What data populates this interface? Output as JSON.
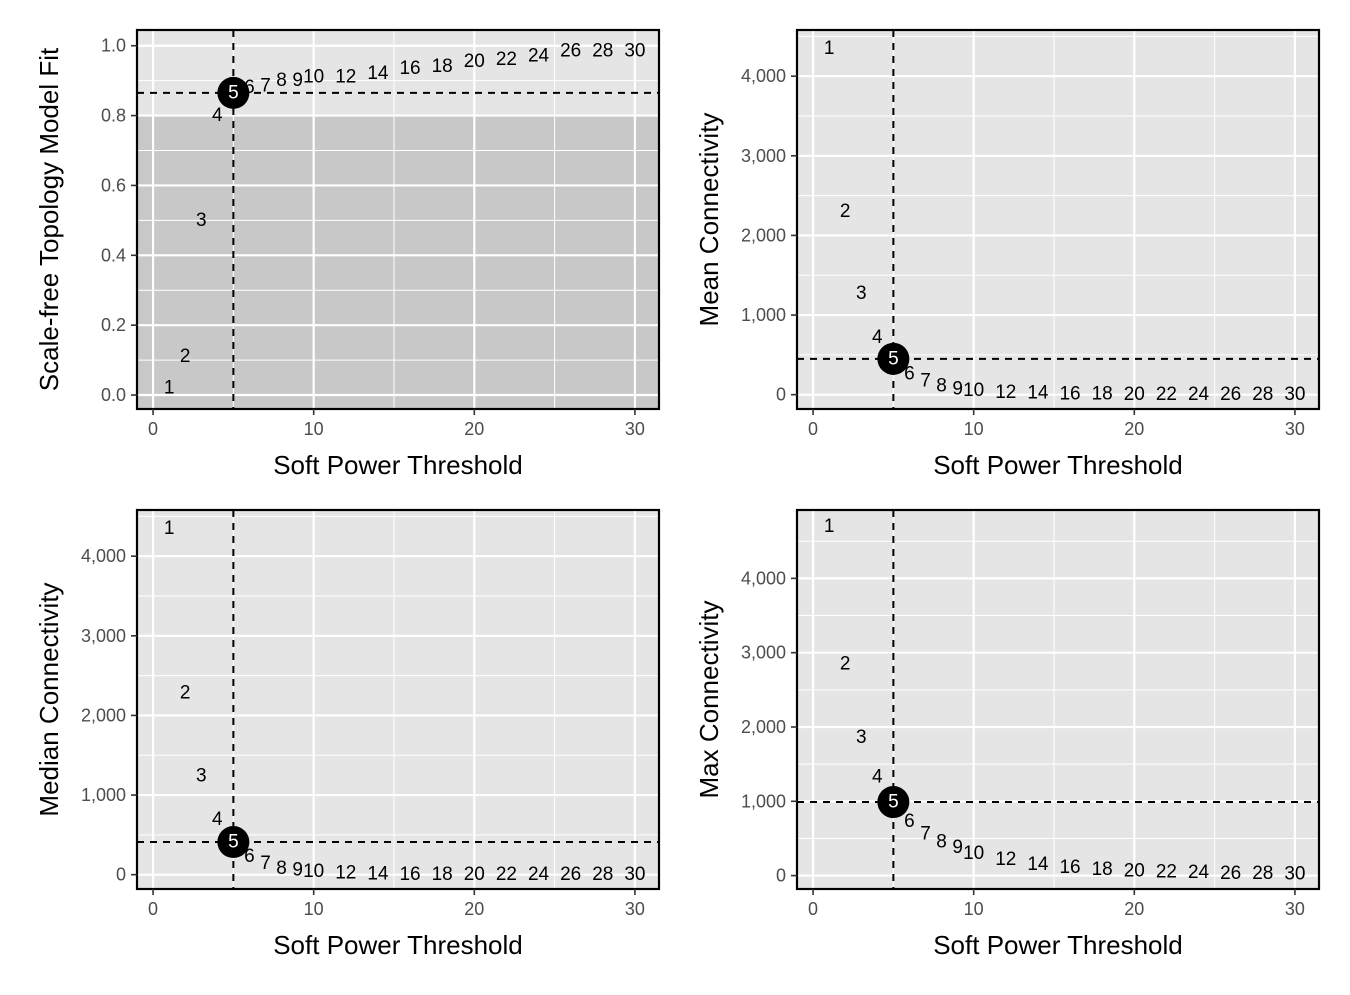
{
  "figure": {
    "highlight_power": 5,
    "colors": {
      "panel_bg": "#e5e5e5",
      "shade_band": "#c8c8c8",
      "grid": "#ffffff",
      "ref_line": "#000000",
      "highlight_marker": "#000000"
    }
  },
  "chart_data": [
    {
      "type": "scatter",
      "marker": "text",
      "xlabel": "Soft Power Threshold",
      "ylabel": "Scale-free Topology Model Fit",
      "xlim": [
        -1,
        31.5
      ],
      "ylim": [
        -0.04,
        1.045
      ],
      "xticks": [
        0,
        10,
        20,
        30
      ],
      "xtick_labels": [
        "0",
        "10",
        "20",
        "30"
      ],
      "yticks": [
        0.0,
        0.2,
        0.4,
        0.6,
        0.8,
        1.0
      ],
      "ytick_labels": [
        "0.0",
        "0.2",
        "0.4",
        "0.6",
        "0.8",
        "1.0"
      ],
      "shaded_y_range": [
        -0.04,
        0.8
      ],
      "hline": 0.865,
      "vline": 5,
      "grid": true,
      "x": [
        1,
        2,
        3,
        4,
        5,
        6,
        7,
        8,
        9,
        10,
        12,
        14,
        16,
        18,
        20,
        22,
        24,
        26,
        28,
        30
      ],
      "y": [
        0.02,
        0.11,
        0.5,
        0.8,
        0.865,
        0.88,
        0.885,
        0.9,
        0.9,
        0.91,
        0.91,
        0.92,
        0.935,
        0.94,
        0.955,
        0.96,
        0.97,
        0.985,
        0.985,
        0.985
      ],
      "labels": [
        "1",
        "2",
        "3",
        "4",
        "5",
        "6",
        "7",
        "8",
        "9",
        "10",
        "12",
        "14",
        "16",
        "18",
        "20",
        "22",
        "24",
        "26",
        "28",
        "30"
      ]
    },
    {
      "type": "scatter",
      "marker": "text",
      "xlabel": "Soft Power Threshold",
      "ylabel": "Mean Connectivity",
      "xlim": [
        -1,
        31.5
      ],
      "ylim": [
        -180,
        4580
      ],
      "xticks": [
        0,
        10,
        20,
        30
      ],
      "xtick_labels": [
        "0",
        "10",
        "20",
        "30"
      ],
      "yticks": [
        0,
        1000,
        2000,
        3000,
        4000
      ],
      "ytick_labels": [
        "0",
        "1,000",
        "2,000",
        "3,000",
        "4,000"
      ],
      "hline": 450,
      "vline": 5,
      "grid": true,
      "x": [
        1,
        2,
        3,
        4,
        5,
        6,
        7,
        8,
        9,
        10,
        12,
        14,
        16,
        18,
        20,
        22,
        24,
        26,
        28,
        30
      ],
      "y": [
        4350,
        2300,
        1270,
        720,
        450,
        260,
        170,
        110,
        70,
        50,
        30,
        20,
        10,
        10,
        5,
        5,
        5,
        5,
        5,
        5
      ],
      "labels": [
        "1",
        "2",
        "3",
        "4",
        "5",
        "6",
        "7",
        "8",
        "9",
        "10",
        "12",
        "14",
        "16",
        "18",
        "20",
        "22",
        "24",
        "26",
        "28",
        "30"
      ]
    },
    {
      "type": "scatter",
      "marker": "text",
      "xlabel": "Soft Power Threshold",
      "ylabel": "Median Connectivity",
      "xlim": [
        -1,
        31.5
      ],
      "ylim": [
        -180,
        4580
      ],
      "xticks": [
        0,
        10,
        20,
        30
      ],
      "xtick_labels": [
        "0",
        "10",
        "20",
        "30"
      ],
      "yticks": [
        0,
        1000,
        2000,
        3000,
        4000
      ],
      "ytick_labels": [
        "0",
        "1,000",
        "2,000",
        "3,000",
        "4,000"
      ],
      "hline": 410,
      "vline": 5,
      "grid": true,
      "x": [
        1,
        2,
        3,
        4,
        5,
        6,
        7,
        8,
        9,
        10,
        12,
        14,
        16,
        18,
        20,
        22,
        24,
        26,
        28,
        30
      ],
      "y": [
        4350,
        2280,
        1240,
        690,
        410,
        230,
        140,
        80,
        60,
        40,
        20,
        10,
        5,
        5,
        5,
        5,
        5,
        5,
        5,
        5
      ],
      "labels": [
        "1",
        "2",
        "3",
        "4",
        "5",
        "6",
        "7",
        "8",
        "9",
        "10",
        "12",
        "14",
        "16",
        "18",
        "20",
        "22",
        "24",
        "26",
        "28",
        "30"
      ]
    },
    {
      "type": "scatter",
      "marker": "text",
      "xlabel": "Soft Power Threshold",
      "ylabel": "Max Connectivity",
      "xlim": [
        -1,
        31.5
      ],
      "ylim": [
        -180,
        4920
      ],
      "xticks": [
        0,
        10,
        20,
        30
      ],
      "xtick_labels": [
        "0",
        "10",
        "20",
        "30"
      ],
      "yticks": [
        0,
        1000,
        2000,
        3000,
        4000
      ],
      "ytick_labels": [
        "0",
        "1,000",
        "2,000",
        "3,000",
        "4,000"
      ],
      "hline": 990,
      "vline": 5,
      "grid": true,
      "x": [
        1,
        2,
        3,
        4,
        5,
        6,
        7,
        8,
        9,
        10,
        12,
        14,
        16,
        18,
        20,
        22,
        24,
        26,
        28,
        30
      ],
      "y": [
        4700,
        2850,
        1860,
        1330,
        990,
        730,
        560,
        450,
        380,
        300,
        220,
        150,
        110,
        80,
        60,
        50,
        40,
        30,
        30,
        20
      ],
      "labels": [
        "1",
        "2",
        "3",
        "4",
        "5",
        "6",
        "7",
        "8",
        "9",
        "10",
        "12",
        "14",
        "16",
        "18",
        "20",
        "22",
        "24",
        "26",
        "28",
        "30"
      ]
    }
  ]
}
